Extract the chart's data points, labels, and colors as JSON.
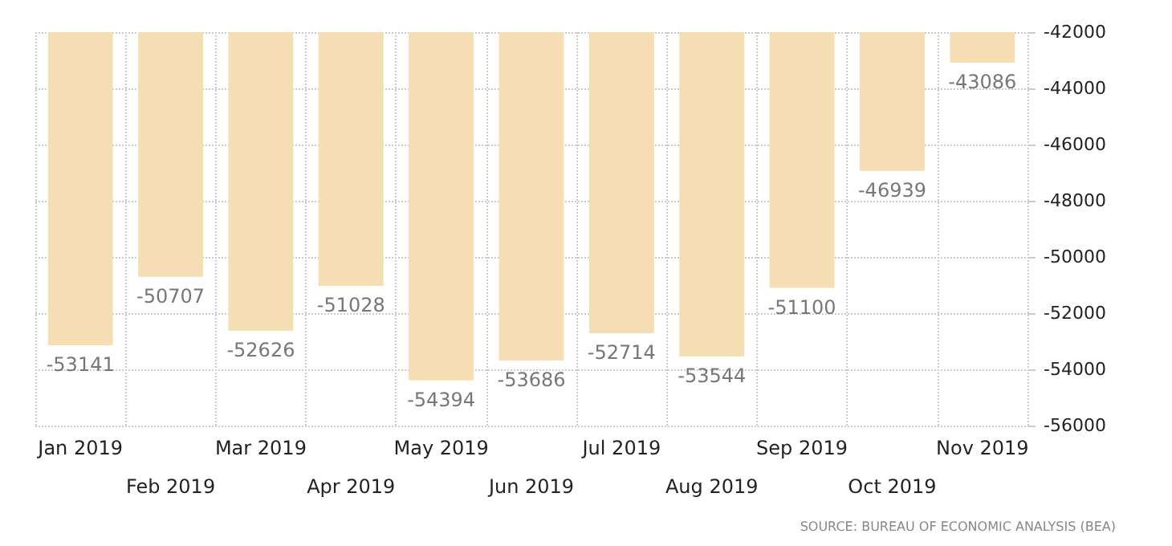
{
  "chart_data": {
    "type": "bar",
    "categories": [
      "Jan 2019",
      "Feb 2019",
      "Mar 2019",
      "Apr 2019",
      "May 2019",
      "Jun 2019",
      "Jul 2019",
      "Aug 2019",
      "Sep 2019",
      "Oct 2019",
      "Nov 2019"
    ],
    "values": [
      -53141,
      -50707,
      -52626,
      -51028,
      -54394,
      -53686,
      -52714,
      -53544,
      -51100,
      -46939,
      -43086
    ],
    "color": "#f5deb3",
    "ylim": [
      -56000,
      -42000
    ],
    "yticks": [
      -56000,
      -54000,
      -52000,
      -50000,
      -48000,
      -46000,
      -44000,
      -42000
    ],
    "grid": true,
    "data_labels": true,
    "annotations": [
      "SOURCE: BUREAU OF ECONOMIC ANALYSIS (BEA)"
    ]
  }
}
